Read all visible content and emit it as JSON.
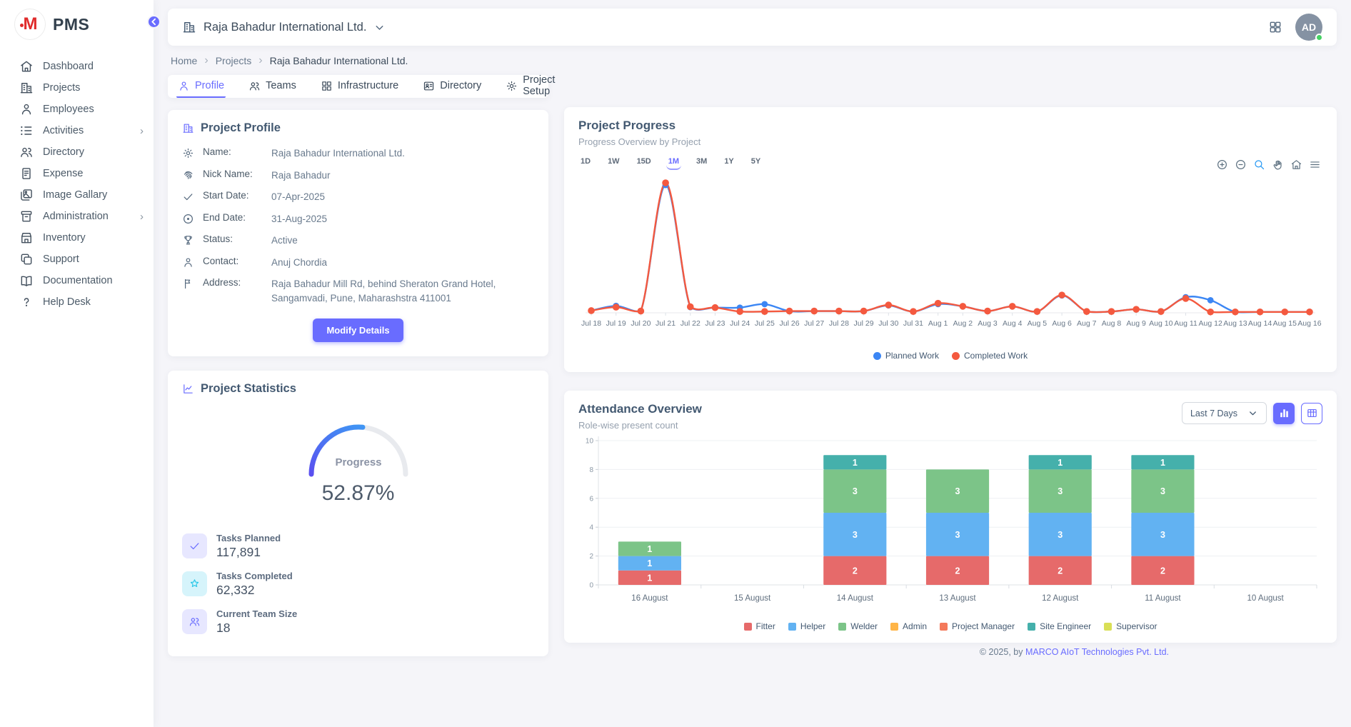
{
  "app": {
    "brand": "PMS",
    "footer": {
      "prefix": "© 2025, by ",
      "company": "MARCO AIoT Technologies Pvt. Ltd."
    }
  },
  "sidebar": {
    "items": [
      {
        "label": "Dashboard",
        "icon": "home-icon",
        "expandable": false
      },
      {
        "label": "Projects",
        "icon": "projects-icon",
        "expandable": false
      },
      {
        "label": "Employees",
        "icon": "employees-icon",
        "expandable": false
      },
      {
        "label": "Activities",
        "icon": "activities-icon",
        "expandable": true
      },
      {
        "label": "Directory",
        "icon": "directory-icon",
        "expandable": false
      },
      {
        "label": "Expense",
        "icon": "expense-icon",
        "expandable": false
      },
      {
        "label": "Image Gallary",
        "icon": "gallery-icon",
        "expandable": false
      },
      {
        "label": "Administration",
        "icon": "administration-icon",
        "expandable": true
      },
      {
        "label": "Inventory",
        "icon": "inventory-icon",
        "expandable": false
      },
      {
        "label": "Support",
        "icon": "support-icon",
        "expandable": false
      },
      {
        "label": "Documentation",
        "icon": "documentation-icon",
        "expandable": false
      },
      {
        "label": "Help Desk",
        "icon": "helpdesk-icon",
        "expandable": false
      }
    ]
  },
  "header": {
    "company": "Raja Bahadur International Ltd.",
    "avatar_initials": "AD",
    "status_color": "#46d164"
  },
  "breadcrumb": [
    "Home",
    "Projects",
    "Raja Bahadur International Ltd."
  ],
  "tabs": [
    {
      "label": "Profile",
      "icon": "person-icon",
      "active": true
    },
    {
      "label": "Teams",
      "icon": "teams-icon",
      "active": false
    },
    {
      "label": "Infrastructure",
      "icon": "infrastructure-icon",
      "active": false
    },
    {
      "label": "Directory",
      "icon": "contact-card-icon",
      "active": false
    },
    {
      "label": "Project Setup",
      "icon": "gear-icon",
      "active": false
    }
  ],
  "profile_card": {
    "title": "Project Profile",
    "title_icon": "building-icon",
    "fields": [
      {
        "icon": "gear-icon",
        "label": "Name:",
        "value": "Raja Bahadur International Ltd."
      },
      {
        "icon": "fingerprint-icon",
        "label": "Nick Name:",
        "value": "Raja Bahadur"
      },
      {
        "icon": "check-icon",
        "label": "Start Date:",
        "value": "07-Apr-2025"
      },
      {
        "icon": "record-icon",
        "label": "End Date:",
        "value": "31-Aug-2025"
      },
      {
        "icon": "trophy-icon",
        "label": "Status:",
        "value": "Active"
      },
      {
        "icon": "person-icon",
        "label": "Contact:",
        "value": "Anuj Chordia"
      },
      {
        "icon": "flag-icon",
        "label": "Address:",
        "value": "Raja Bahadur Mill Rd, behind Sheraton Grand Hotel, Sangamvadi, Pune, Maharashstra 411001"
      }
    ],
    "button_label": "Modify Details"
  },
  "stats_card": {
    "title": "Project Statistics",
    "title_icon": "chart-line-icon",
    "gauge": {
      "label": "Progress",
      "value": "52.87%",
      "percent": 52.87,
      "color_start": "#5a4ff0",
      "color_end": "#38a9f5",
      "track": "#e8eaee"
    },
    "stats": [
      {
        "icon": "check-icon",
        "icon_bg": "#e7e7ff",
        "icon_color": "#696cff",
        "label": "Tasks Planned",
        "value": "117,891"
      },
      {
        "icon": "star-icon",
        "icon_bg": "#d6f4fb",
        "icon_color": "#29c8e8",
        "label": "Tasks Completed",
        "value": "62,332"
      },
      {
        "icon": "teams-icon",
        "icon_bg": "#e7e7ff",
        "icon_color": "#696cff",
        "label": "Current Team Size",
        "value": "18"
      }
    ]
  },
  "progress_card": {
    "title": "Project Progress",
    "subtitle": "Progress Overview by Project",
    "ranges": [
      "1D",
      "1W",
      "15D",
      "1M",
      "3M",
      "1Y",
      "5Y"
    ],
    "active_range": "1M",
    "modebar_icons": [
      "zoom-in-icon",
      "zoom-out-icon",
      "search-icon",
      "pan-icon",
      "home-icon",
      "menu-icon"
    ]
  },
  "attendance_card": {
    "title": "Attendance Overview",
    "subtitle": "Role-wise present count",
    "filter_value": "Last 7 Days",
    "view_buttons": [
      "bar-chart-icon",
      "table-icon"
    ]
  },
  "chart_data": [
    {
      "type": "line",
      "title": "Project Progress",
      "x": [
        "Jul 18",
        "Jul 19",
        "Jul 20",
        "Jul 21",
        "Jul 22",
        "Jul 23",
        "Jul 24",
        "Jul 25",
        "Jul 26",
        "Jul 27",
        "Jul 28",
        "Jul 29",
        "Jul 30",
        "Jul 31",
        "Aug 1",
        "Aug 2",
        "Aug 3",
        "Aug 4",
        "Aug 5",
        "Aug 6",
        "Aug 7",
        "Aug 8",
        "Aug 9",
        "Aug 10",
        "Aug 11",
        "Aug 12",
        "Aug 13",
        "Aug 14",
        "Aug 15",
        "Aug 16"
      ],
      "series": [
        {
          "name": "Planned Work",
          "color": "#3b86f4",
          "values": [
            0.5,
            1.6,
            0.4,
            29.5,
            1.3,
            1.2,
            1.2,
            2.0,
            0.4,
            0.4,
            0.4,
            0.4,
            1.7,
            0.3,
            2.0,
            1.5,
            0.4,
            1.5,
            0.3,
            4.0,
            0.3,
            0.3,
            0.8,
            0.3,
            3.6,
            2.9,
            0.2,
            0.2,
            0.2,
            0.2
          ]
        },
        {
          "name": "Completed Work",
          "color": "#f4593f",
          "values": [
            0.5,
            1.3,
            0.4,
            30,
            1.4,
            1.2,
            0.3,
            0.3,
            0.4,
            0.4,
            0.4,
            0.4,
            1.8,
            0.3,
            2.2,
            1.5,
            0.4,
            1.5,
            0.3,
            4.1,
            0.3,
            0.3,
            0.8,
            0.3,
            3.3,
            0.2,
            0.2,
            0.2,
            0.2,
            0.2
          ]
        }
      ],
      "ylim": [
        0,
        31
      ],
      "grid": false,
      "legend_position": "bottom"
    },
    {
      "type": "bar",
      "stacked": true,
      "title": "Attendance Overview",
      "categories": [
        "16 August",
        "15 August",
        "14 August",
        "13 August",
        "12 August",
        "11 August",
        "10 August"
      ],
      "series": [
        {
          "name": "Fitter",
          "color": "#e66a6a",
          "values": [
            1,
            0,
            2,
            2,
            2,
            2,
            0
          ]
        },
        {
          "name": "Helper",
          "color": "#62b2f2",
          "values": [
            1,
            0,
            3,
            3,
            3,
            3,
            0
          ]
        },
        {
          "name": "Welder",
          "color": "#7cc488",
          "values": [
            1,
            0,
            3,
            3,
            3,
            3,
            0
          ]
        },
        {
          "name": "Admin",
          "color": "#ffb547",
          "values": [
            0,
            0,
            0,
            0,
            0,
            0,
            0
          ]
        },
        {
          "name": "Project Manager",
          "color": "#f4795b",
          "values": [
            0,
            0,
            0,
            0,
            0,
            0,
            0
          ]
        },
        {
          "name": "Site Engineer",
          "color": "#45b0ab",
          "values": [
            0,
            0,
            1,
            0,
            1,
            1,
            0
          ]
        },
        {
          "name": "Supervisor",
          "color": "#d9df56",
          "values": [
            0,
            0,
            0,
            0,
            0,
            0,
            0
          ]
        }
      ],
      "ylim": [
        0,
        10
      ],
      "yticks": [
        0,
        2,
        4,
        6,
        8,
        10
      ],
      "grid": true,
      "legend_position": "bottom"
    }
  ]
}
